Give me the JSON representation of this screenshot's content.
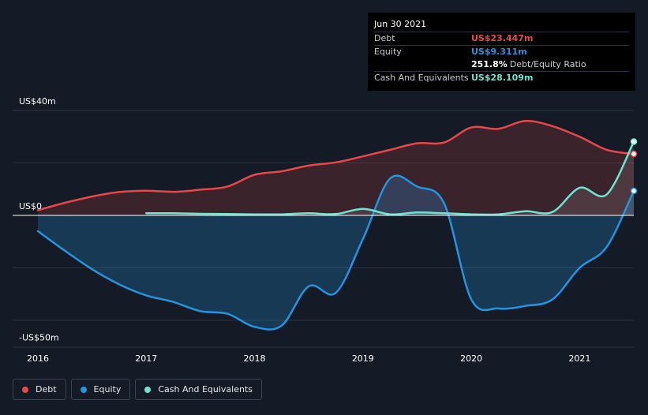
{
  "tooltip": {
    "date": "Jun 30 2021",
    "rows": [
      {
        "label": "Debt",
        "value": "US$23.447m",
        "color": "#e8474a"
      },
      {
        "label": "Equity",
        "value": "US$9.311m",
        "color": "#2394df"
      },
      {
        "label": "",
        "value": "251.8%",
        "sub": "Debt/Equity Ratio",
        "color": "#ffffff"
      },
      {
        "label": "Cash And Equivalents",
        "value": "US$28.109m",
        "color": "#6de4cf"
      }
    ]
  },
  "legend": [
    {
      "label": "Debt",
      "color": "#e8474a"
    },
    {
      "label": "Equity",
      "color": "#2394df"
    },
    {
      "label": "Cash And Equivalents",
      "color": "#6de4cf"
    }
  ],
  "chart_data": {
    "type": "line",
    "title": "",
    "xlabel": "",
    "ylabel": "",
    "ylim": [
      -50,
      40
    ],
    "x_ticks": [
      2016,
      2017,
      2018,
      2019,
      2020,
      2021
    ],
    "x_tick_labels": [
      "2016",
      "2017",
      "2018",
      "2019",
      "2020",
      "2021"
    ],
    "xlim": [
      2016,
      2021.5
    ],
    "y_axis_labels": [
      {
        "value": 40,
        "label": "US$40m"
      },
      {
        "value": 0,
        "label": "US$0"
      },
      {
        "value": -50,
        "label": "-US$50m"
      }
    ],
    "gridlines": [
      40,
      20,
      -20,
      -40
    ],
    "series": [
      {
        "name": "Debt",
        "color": "#e8474a",
        "x": [
          2016,
          2016.25,
          2016.5,
          2016.75,
          2017,
          2017.25,
          2017.5,
          2017.75,
          2018,
          2018.25,
          2018.5,
          2018.75,
          2019,
          2019.25,
          2019.5,
          2019.75,
          2020,
          2020.25,
          2020.5,
          2020.75,
          2021,
          2021.25,
          2021.5
        ],
        "values": [
          2.0,
          4.8,
          7.2,
          8.9,
          9.4,
          9.0,
          9.8,
          11.0,
          15.5,
          16.8,
          19.0,
          20.2,
          22.5,
          25.0,
          27.5,
          27.8,
          33.5,
          33.0,
          36.0,
          34.0,
          30.0,
          25.0,
          23.447
        ]
      },
      {
        "name": "Equity",
        "color": "#2394df",
        "x": [
          2016,
          2016.25,
          2016.5,
          2016.75,
          2017,
          2017.25,
          2017.5,
          2017.75,
          2018,
          2018.25,
          2018.5,
          2018.75,
          2019,
          2019.25,
          2019.5,
          2019.75,
          2020,
          2020.25,
          2020.5,
          2020.75,
          2021,
          2021.25,
          2021.5
        ],
        "values": [
          -6.0,
          -13.5,
          -20.5,
          -26.3,
          -30.5,
          -33.0,
          -36.5,
          -37.5,
          -42.5,
          -42.0,
          -27.0,
          -29.5,
          -9.0,
          14.0,
          11.0,
          4.5,
          -32.0,
          -35.5,
          -34.5,
          -32.0,
          -20.0,
          -12.0,
          9.311
        ]
      },
      {
        "name": "Cash And Equivalents",
        "color": "#6de4cf",
        "x": [
          2017,
          2017.25,
          2017.5,
          2017.75,
          2018,
          2018.25,
          2018.5,
          2018.75,
          2019,
          2019.25,
          2019.5,
          2019.75,
          2020,
          2020.25,
          2020.5,
          2020.75,
          2021,
          2021.25,
          2021.5
        ],
        "values": [
          0.8,
          0.8,
          0.6,
          0.5,
          0.4,
          0.4,
          0.8,
          0.5,
          2.5,
          0.4,
          1.1,
          0.8,
          0.4,
          0.4,
          1.6,
          1.3,
          10.5,
          8.0,
          28.109
        ]
      }
    ]
  }
}
